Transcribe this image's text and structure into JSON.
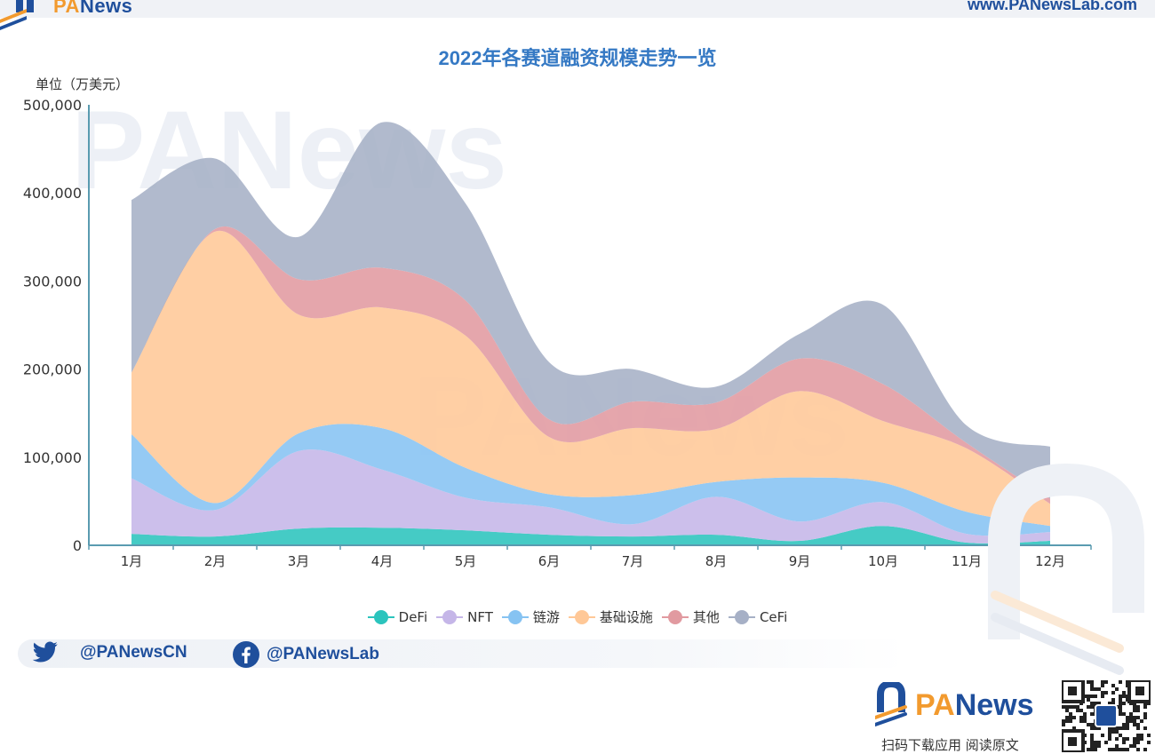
{
  "header": {
    "brand_prefix": "PA",
    "brand_suffix": "News",
    "url": "www.PANewsLab.com"
  },
  "chart_data": {
    "type": "area",
    "stacked": true,
    "smooth": true,
    "title": "2022年各赛道融资规模走势一览",
    "unit_label": "单位（万美元）",
    "categories": [
      "1月",
      "2月",
      "3月",
      "4月",
      "5月",
      "6月",
      "7月",
      "8月",
      "9月",
      "10月",
      "11月",
      "12月"
    ],
    "ylim": [
      0,
      500000
    ],
    "yticks": [
      0,
      100000,
      200000,
      300000,
      400000,
      500000
    ],
    "ytick_labels": [
      "0",
      "100,000",
      "200,000",
      "300,000",
      "400,000",
      "500,000"
    ],
    "legend_position": "bottom-center",
    "series": [
      {
        "name": "DeFi",
        "color": "#2bc4bd",
        "values": [
          13000,
          10000,
          19000,
          20000,
          17000,
          12000,
          10000,
          12000,
          5000,
          22000,
          3000,
          5000
        ]
      },
      {
        "name": "NFT",
        "color": "#c5b6e8",
        "values": [
          63000,
          30000,
          88000,
          66000,
          37000,
          31000,
          14000,
          43000,
          22000,
          27000,
          10000,
          10000
        ]
      },
      {
        "name": "链游",
        "color": "#86c3f2",
        "values": [
          50000,
          8000,
          20000,
          47000,
          34000,
          15000,
          33000,
          17000,
          50000,
          22000,
          25000,
          7000
        ]
      },
      {
        "name": "基础设施",
        "color": "#ffc897",
        "values": [
          70000,
          308000,
          135000,
          137000,
          150000,
          65000,
          76000,
          60000,
          98000,
          70000,
          72000,
          25000
        ]
      },
      {
        "name": "其他",
        "color": "#e19aa0",
        "values": [
          0,
          3000,
          40000,
          45000,
          40000,
          20000,
          30000,
          30000,
          37000,
          42000,
          6000,
          6000
        ]
      },
      {
        "name": "CeFi",
        "color": "#a6b0c6",
        "values": [
          196000,
          80000,
          48000,
          165000,
          110000,
          65000,
          37000,
          18000,
          28000,
          90000,
          20000,
          59000
        ]
      }
    ]
  },
  "social": {
    "twitter": "@PANewsCN",
    "facebook": "@PANewsLab"
  },
  "footer": {
    "brand_prefix": "PA",
    "brand_suffix": "News",
    "caption": "扫码下载应用 阅读原文"
  },
  "icons": {
    "twitter": "twitter-bird-icon",
    "facebook": "facebook-f-icon",
    "qr": "qr-code-icon",
    "logo": "panews-logo-icon"
  }
}
